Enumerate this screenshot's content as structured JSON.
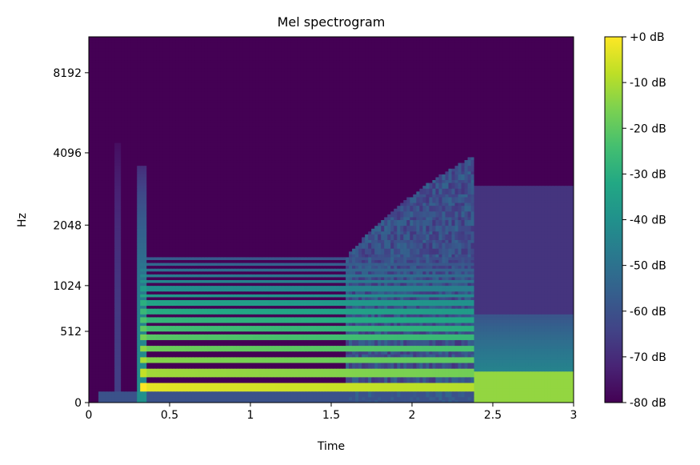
{
  "chart_data": {
    "type": "heatmap",
    "title": "Mel spectrogram",
    "xlabel": "Time",
    "ylabel": "Hz",
    "xlim": [
      0,
      3
    ],
    "x_ticks": [
      {
        "value": 0,
        "label": "0"
      },
      {
        "value": 0.5,
        "label": "0.5"
      },
      {
        "value": 1,
        "label": "1"
      },
      {
        "value": 1.5,
        "label": "1.5"
      },
      {
        "value": 2,
        "label": "2"
      },
      {
        "value": 2.5,
        "label": "2.5"
      },
      {
        "value": 3,
        "label": "3"
      }
    ],
    "y_scale": "mel",
    "y_ticks": [
      {
        "value": 0,
        "label": "0"
      },
      {
        "value": 512,
        "label": "512"
      },
      {
        "value": 1024,
        "label": "1024"
      },
      {
        "value": 2048,
        "label": "2048"
      },
      {
        "value": 4096,
        "label": "4096"
      },
      {
        "value": 8192,
        "label": "8192"
      }
    ],
    "colormap": "viridis",
    "colorbar": {
      "range_db": [
        -80,
        0
      ],
      "ticks": [
        {
          "value": 0,
          "label": "+0 dB"
        },
        {
          "value": -10,
          "label": "-10 dB"
        },
        {
          "value": -20,
          "label": "-20 dB"
        },
        {
          "value": -30,
          "label": "-30 dB"
        },
        {
          "value": -40,
          "label": "-40 dB"
        },
        {
          "value": -50,
          "label": "-50 dB"
        },
        {
          "value": -60,
          "label": "-60 dB"
        },
        {
          "value": -70,
          "label": "-70 dB"
        },
        {
          "value": -80,
          "label": "-80 dB"
        }
      ]
    },
    "events": [
      {
        "type": "click",
        "time": 0.18,
        "max_hz": 4500,
        "level_db": -65
      },
      {
        "type": "onset",
        "time": 0.31,
        "max_hz": 3700,
        "level_db": -50
      },
      {
        "type": "tone_end",
        "time": 2.38
      }
    ],
    "harmonics_hz": [
      90,
      180,
      270,
      360,
      450,
      540,
      630,
      720,
      810,
      900,
      990,
      1080,
      1170,
      1260,
      1350,
      1440
    ],
    "noise_band": {
      "t_start": 1.58,
      "t_end": 2.38,
      "max_hz": 4000,
      "level_db": -60
    },
    "tail_noise": {
      "t_start": 2.38,
      "t_end": 3.0,
      "max_hz": 3000,
      "level_db": -68
    },
    "colors": {
      "viridis": [
        "#440154",
        "#482475",
        "#414487",
        "#355f8d",
        "#2a788e",
        "#21918c",
        "#22a884",
        "#44bf70",
        "#7ad151",
        "#bddf26",
        "#fde725"
      ]
    }
  }
}
